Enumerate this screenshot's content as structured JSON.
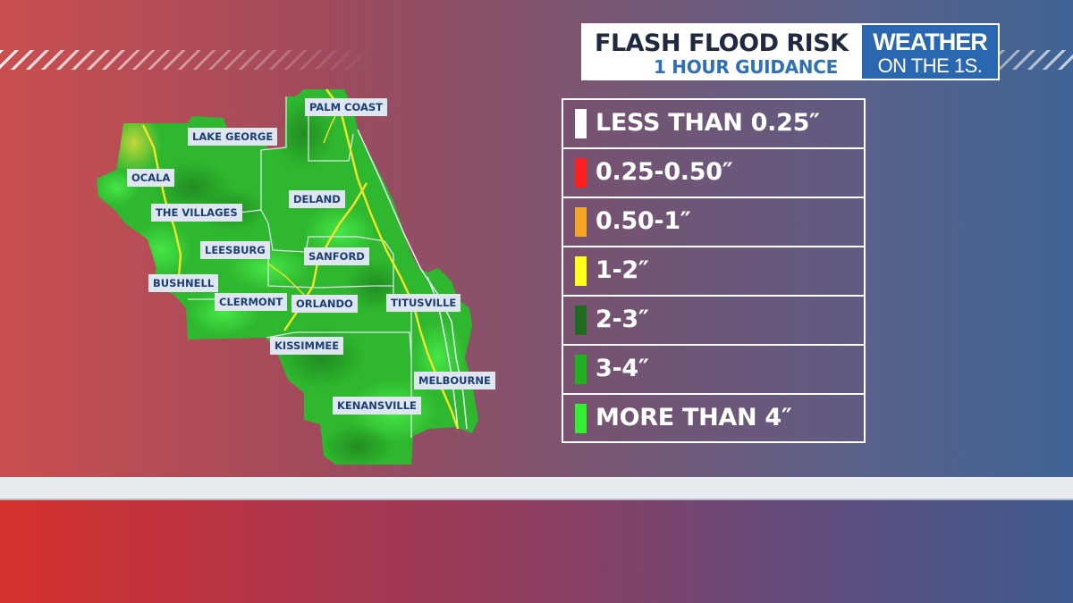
{
  "header": {
    "title": "FLASH FLOOD RISK",
    "subtitle": "1 HOUR GUIDANCE"
  },
  "brand": {
    "line1": "WEATHER",
    "line2": "ON THE 1S."
  },
  "legend": {
    "items": [
      {
        "label": "LESS THAN 0.25″",
        "color": "#ffffff"
      },
      {
        "label": "0.25-0.50″",
        "color": "#ff1f1f"
      },
      {
        "label": "0.50-1″",
        "color": "#f5a623"
      },
      {
        "label": "1-2″",
        "color": "#ffff1a"
      },
      {
        "label": "2-3″",
        "color": "#1f6b1f"
      },
      {
        "label": "3-4″",
        "color": "#22b022"
      },
      {
        "label": "MORE THAN 4″",
        "color": "#33ee33"
      }
    ]
  },
  "cities": {
    "palm_coast": "PALM COAST",
    "lake_george": "LAKE GEORGE",
    "ocala": "OCALA",
    "deland": "DELAND",
    "the_villages": "THE VILLAGES",
    "leesburg": "LEESBURG",
    "sanford": "SANFORD",
    "bushnell": "BUSHNELL",
    "clermont": "CLERMONT",
    "orlando": "ORLANDO",
    "titusville": "TITUSVILLE",
    "kissimmee": "KISSIMMEE",
    "melbourne": "MELBOURNE",
    "kenansville": "KENANSVILLE"
  },
  "colors": {
    "map_base": "#2fb82f",
    "highway": "#f2e62a",
    "county_line": "#e8eef5"
  }
}
